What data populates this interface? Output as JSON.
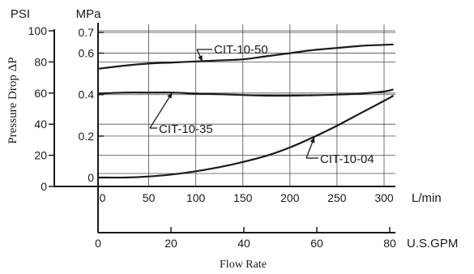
{
  "chart_data": {
    "type": "line",
    "title": "",
    "ylabel": "Pressure Drop ΔP",
    "xlabel": "Flow Rate",
    "psi_axis": {
      "unit": "PSI",
      "ticks": [
        "100",
        "80",
        "60",
        "40",
        "20",
        "0"
      ],
      "values": [
        100,
        80,
        60,
        40,
        20,
        0
      ]
    },
    "mpa_axis": {
      "unit": "MPa",
      "ticks": [
        "0.7",
        "0.6",
        "0.4",
        "0.2",
        "0"
      ],
      "values": [
        0.7,
        0.6,
        0.4,
        0.2,
        0
      ]
    },
    "lmin_axis": {
      "unit": "L/min",
      "ticks": [
        "0",
        "50",
        "100",
        "150",
        "200",
        "250",
        "300"
      ],
      "values": [
        0,
        50,
        100,
        150,
        200,
        250,
        300
      ]
    },
    "gpm_axis": {
      "unit": "U.S.GPM",
      "ticks": [
        "0",
        "20",
        "40",
        "60",
        "80"
      ],
      "values": [
        0,
        20,
        40,
        60,
        80
      ]
    },
    "xlim_lmin": [
      0,
      310
    ],
    "ylim_mpa": [
      -0.05,
      0.72
    ],
    "grid": true,
    "series": [
      {
        "name": "CIT-10-50",
        "x": [
          0,
          25,
          50,
          75,
          100,
          125,
          150,
          175,
          200,
          225,
          250,
          275,
          300,
          310
        ],
        "y": [
          0.525,
          0.54,
          0.55,
          0.555,
          0.56,
          0.565,
          0.57,
          0.585,
          0.6,
          0.615,
          0.625,
          0.635,
          0.64,
          0.642
        ]
      },
      {
        "name": "CIT-10-35",
        "x": [
          0,
          25,
          50,
          75,
          100,
          125,
          150,
          175,
          200,
          225,
          250,
          275,
          300,
          310
        ],
        "y": [
          0.405,
          0.41,
          0.41,
          0.41,
          0.405,
          0.402,
          0.398,
          0.395,
          0.395,
          0.397,
          0.4,
          0.405,
          0.415,
          0.425
        ]
      },
      {
        "name": "CIT-10-04",
        "x": [
          0,
          25,
          50,
          75,
          100,
          125,
          150,
          175,
          200,
          225,
          250,
          275,
          300,
          310
        ],
        "y": [
          0.0,
          0.0,
          0.005,
          0.015,
          0.03,
          0.05,
          0.075,
          0.105,
          0.145,
          0.195,
          0.25,
          0.31,
          0.37,
          0.395
        ]
      }
    ],
    "annotations": [
      {
        "text": "CIT-10-50",
        "series": 0
      },
      {
        "text": "CIT-10-35",
        "series": 1
      },
      {
        "text": "CIT-10-04",
        "series": 2
      }
    ]
  },
  "colors": {
    "line": "#1a1a1a",
    "grid": "#4d4d4d",
    "background": "#ffffff"
  }
}
